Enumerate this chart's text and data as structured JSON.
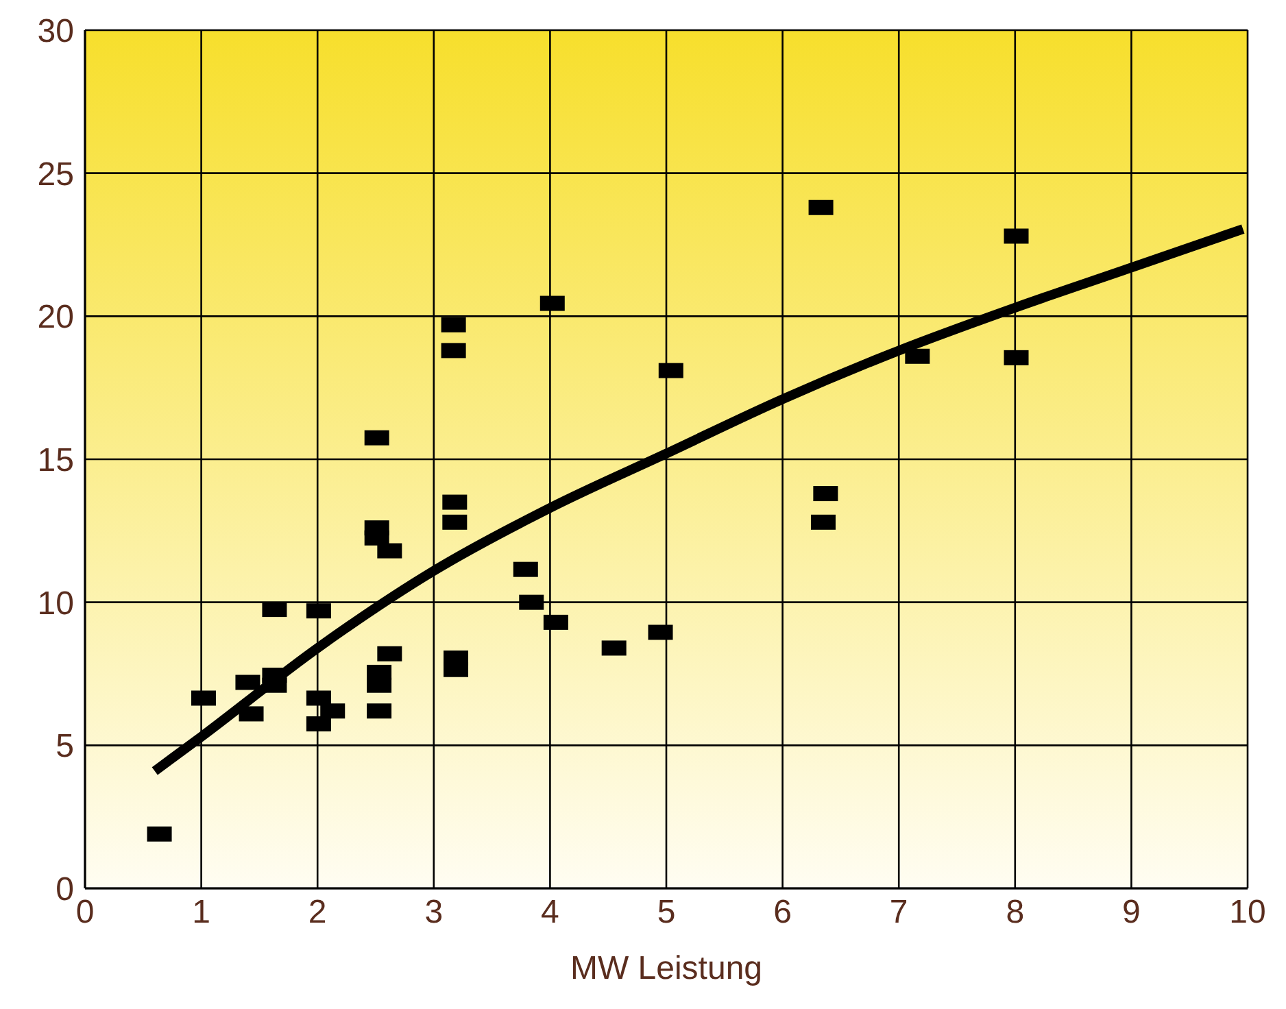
{
  "chart_data": {
    "type": "scatter",
    "xlabel": "MW Leistung",
    "xlim": [
      0,
      10
    ],
    "xticks": [
      0,
      1,
      2,
      3,
      4,
      5,
      6,
      7,
      8,
      9,
      10
    ],
    "ylim": [
      0,
      30
    ],
    "yticks": [
      0,
      5,
      10,
      15,
      20,
      25,
      30
    ],
    "grid": true,
    "legend": false,
    "marker": "square",
    "series": [
      {
        "color": "#000000",
        "x": [
          0.64,
          1.02,
          1.4,
          1.43,
          1.63,
          1.63,
          1.63,
          2.01,
          2.01,
          2.01,
          2.13,
          2.51,
          2.51,
          2.51,
          2.62,
          2.62,
          2.53,
          2.53,
          2.53,
          3.17,
          3.17,
          3.18,
          3.18,
          3.19,
          3.19,
          3.79,
          3.84,
          4.02,
          4.05,
          4.55,
          4.95,
          5.04,
          6.33,
          6.37,
          6.35,
          7.16,
          8.01,
          8.01
        ],
        "values": [
          1.9,
          6.65,
          7.2,
          6.1,
          7.45,
          7.1,
          9.75,
          9.7,
          6.65,
          5.75,
          6.2,
          15.75,
          12.6,
          12.25,
          11.8,
          8.2,
          7.55,
          7.1,
          6.2,
          19.7,
          18.8,
          13.5,
          12.8,
          8.05,
          7.65,
          11.15,
          10.0,
          20.45,
          9.3,
          8.4,
          8.95,
          18.1,
          23.8,
          13.8,
          12.8,
          18.6,
          22.8,
          18.55
        ]
      },
      {
        "type": "line",
        "color": "#000000",
        "marker": "none",
        "line_style": "solid",
        "x": [
          0.6,
          1,
          2,
          3,
          4,
          5,
          6,
          7,
          8,
          9,
          9.96
        ],
        "values": [
          4.1,
          5.3,
          8.4,
          11.1,
          13.3,
          15.2,
          17.1,
          18.8,
          20.3,
          21.7,
          23.05
        ]
      }
    ]
  }
}
